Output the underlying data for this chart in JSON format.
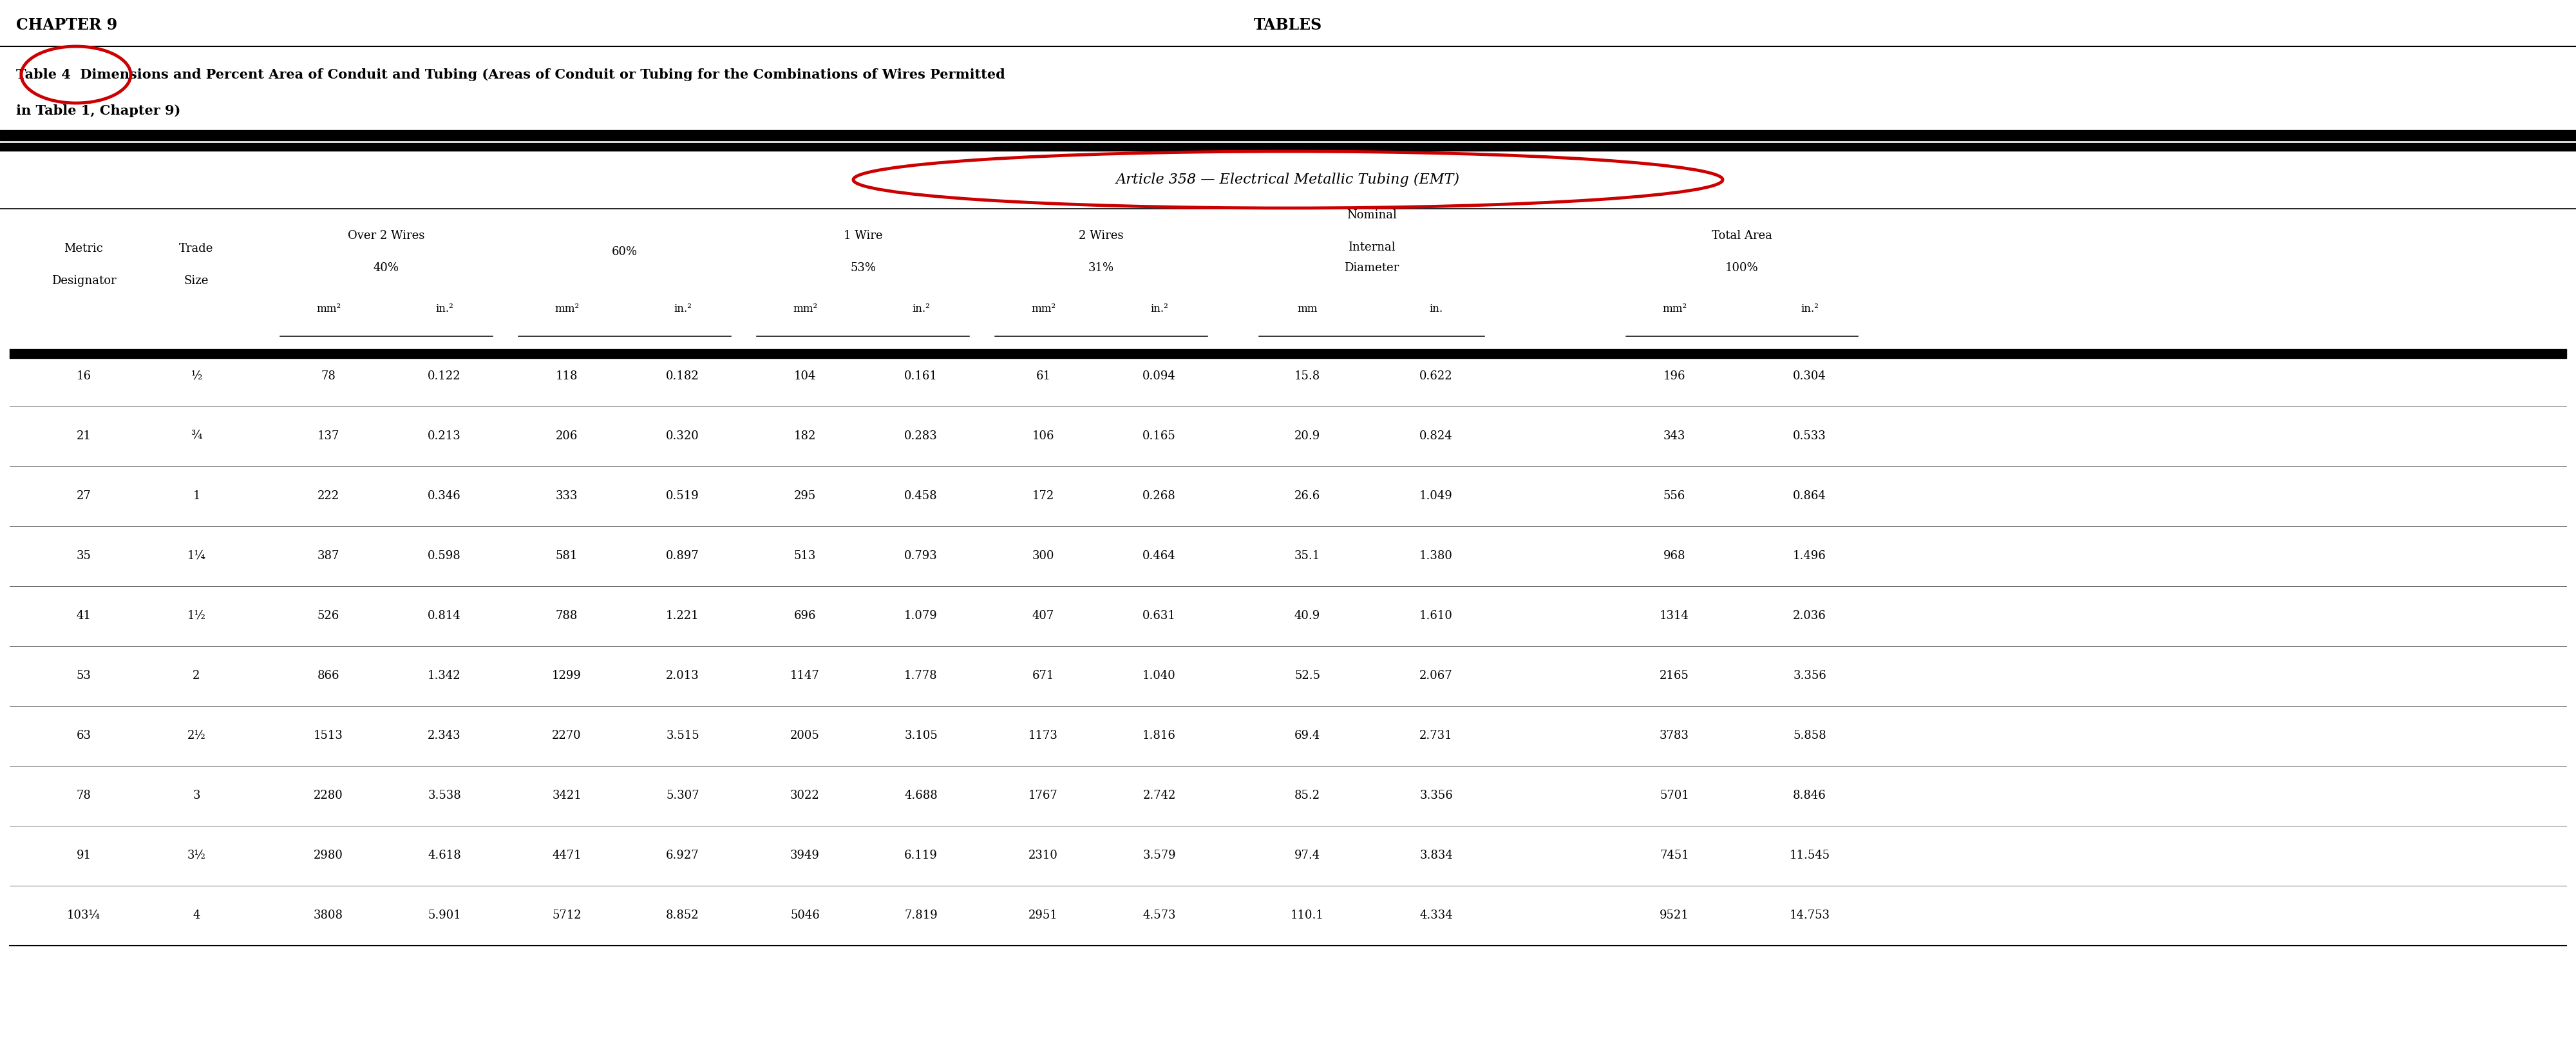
{
  "chapter_header_left": "CHAPTER 9",
  "chapter_header_center": "TABLES",
  "table_label": "Table 4",
  "table_title_line1": "Dimensions and Percent Area of Conduit and Tubing (Areas of Conduit or Tubing for the Combinations of Wires Permitted",
  "table_title_line2": "in Table 1, Chapter 9)",
  "article_header": "Article 358 — Electrical Metallic Tubing (EMT)",
  "rows": [
    [
      "16",
      "½",
      "78",
      "0.122",
      "118",
      "0.182",
      "104",
      "0.161",
      "61",
      "0.094",
      "15.8",
      "0.622",
      "196",
      "0.304"
    ],
    [
      "21",
      "¾",
      "137",
      "0.213",
      "206",
      "0.320",
      "182",
      "0.283",
      "106",
      "0.165",
      "20.9",
      "0.824",
      "343",
      "0.533"
    ],
    [
      "27",
      "1",
      "222",
      "0.346",
      "333",
      "0.519",
      "295",
      "0.458",
      "172",
      "0.268",
      "26.6",
      "1.049",
      "556",
      "0.864"
    ],
    [
      "35",
      "1¼",
      "387",
      "0.598",
      "581",
      "0.897",
      "513",
      "0.793",
      "300",
      "0.464",
      "35.1",
      "1.380",
      "968",
      "1.496"
    ],
    [
      "41",
      "1½",
      "526",
      "0.814",
      "788",
      "1.221",
      "696",
      "1.079",
      "407",
      "0.631",
      "40.9",
      "1.610",
      "1314",
      "2.036"
    ],
    [
      "53",
      "2",
      "866",
      "1.342",
      "1299",
      "2.013",
      "1147",
      "1.778",
      "671",
      "1.040",
      "52.5",
      "2.067",
      "2165",
      "3.356"
    ],
    [
      "63",
      "2½",
      "1513",
      "2.343",
      "2270",
      "3.515",
      "2005",
      "3.105",
      "1173",
      "1.816",
      "69.4",
      "2.731",
      "3783",
      "5.858"
    ],
    [
      "78",
      "3",
      "2280",
      "3.538",
      "3421",
      "5.307",
      "3022",
      "4.688",
      "1767",
      "2.742",
      "85.2",
      "3.356",
      "5701",
      "8.846"
    ],
    [
      "91",
      "3½",
      "2980",
      "4.618",
      "4471",
      "6.927",
      "3949",
      "6.119",
      "2310",
      "3.579",
      "97.4",
      "3.834",
      "7451",
      "11.545"
    ],
    [
      "103¼",
      "4",
      "3808",
      "5.901",
      "5712",
      "8.852",
      "5046",
      "7.819",
      "2951",
      "4.573",
      "110.1",
      "4.334",
      "9521",
      "14.753"
    ]
  ],
  "col_x": {
    "metric": 1.3,
    "trade": 3.05,
    "mm2_40": 5.1,
    "in2_40": 6.9,
    "mm2_60": 8.8,
    "in2_60": 10.6,
    "mm2_53": 12.5,
    "in2_53": 14.3,
    "mm2_31": 16.2,
    "in2_31": 18.0,
    "mm_nom": 20.3,
    "in_nom": 22.3,
    "mm2_100": 26.0,
    "in2_100": 28.1
  },
  "bg_color": "#ffffff",
  "red_color": "#cc0000"
}
